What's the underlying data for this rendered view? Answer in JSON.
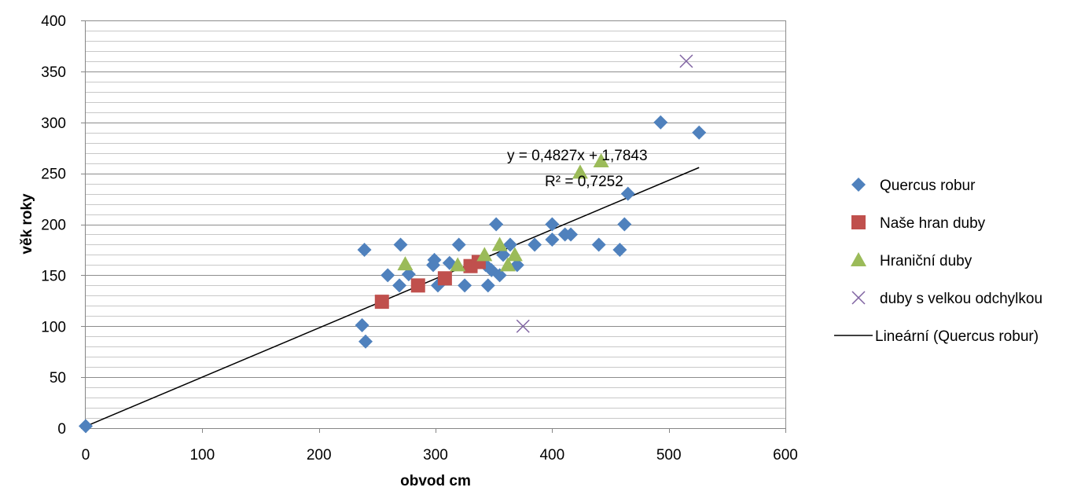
{
  "chart_data": {
    "type": "scatter",
    "xlabel": "obvod cm",
    "ylabel": "věk roky",
    "xlim": [
      0,
      600
    ],
    "ylim": [
      0,
      400
    ],
    "x_ticks": [
      0,
      100,
      200,
      300,
      400,
      500,
      600
    ],
    "y_ticks": [
      0,
      50,
      100,
      150,
      200,
      250,
      300,
      350,
      400
    ],
    "grid": "horizontal major and minor",
    "legend_position": "right",
    "series": [
      {
        "name": "Quercus robur",
        "marker": "diamond",
        "color": "#4F81BD",
        "points": [
          [
            0,
            2
          ],
          [
            237,
            101
          ],
          [
            239,
            175
          ],
          [
            240,
            85
          ],
          [
            259,
            150
          ],
          [
            269,
            140
          ],
          [
            270,
            180
          ],
          [
            277,
            151
          ],
          [
            298,
            160
          ],
          [
            299,
            165
          ],
          [
            302,
            140
          ],
          [
            312,
            162
          ],
          [
            320,
            180
          ],
          [
            325,
            140
          ],
          [
            343,
            160
          ],
          [
            345,
            140
          ],
          [
            348,
            155
          ],
          [
            352,
            200
          ],
          [
            355,
            150
          ],
          [
            358,
            170
          ],
          [
            364,
            180
          ],
          [
            370,
            160
          ],
          [
            385,
            180
          ],
          [
            400,
            200
          ],
          [
            400,
            185
          ],
          [
            411,
            190
          ],
          [
            416,
            190
          ],
          [
            440,
            180
          ],
          [
            458,
            175
          ],
          [
            462,
            200
          ],
          [
            465,
            230
          ],
          [
            493,
            300
          ],
          [
            526,
            290
          ]
        ]
      },
      {
        "name": "Naše hran duby",
        "marker": "square",
        "color": "#C0504D",
        "points": [
          [
            254,
            124
          ],
          [
            285,
            140
          ],
          [
            308,
            147
          ],
          [
            330,
            159
          ],
          [
            337,
            163
          ]
        ]
      },
      {
        "name": "Hraniční duby",
        "marker": "triangle",
        "color": "#9BBB59",
        "points": [
          [
            274,
            161
          ],
          [
            319,
            160
          ],
          [
            342,
            170
          ],
          [
            355,
            180
          ],
          [
            362,
            160
          ],
          [
            368,
            170
          ],
          [
            424,
            251
          ],
          [
            442,
            262
          ]
        ]
      },
      {
        "name": "duby s velkou odchylkou",
        "marker": "x",
        "color": "#8064A2",
        "points": [
          [
            375,
            100
          ],
          [
            515,
            360
          ]
        ]
      }
    ],
    "trendline": {
      "name": "Lineární (Quercus robur)",
      "color": "#000000",
      "slope": 0.4827,
      "intercept": 1.7843,
      "x_range": [
        0,
        526
      ],
      "equation": "y = 0,4827x + 1,7843",
      "r2": "R² = 0,7252"
    }
  }
}
